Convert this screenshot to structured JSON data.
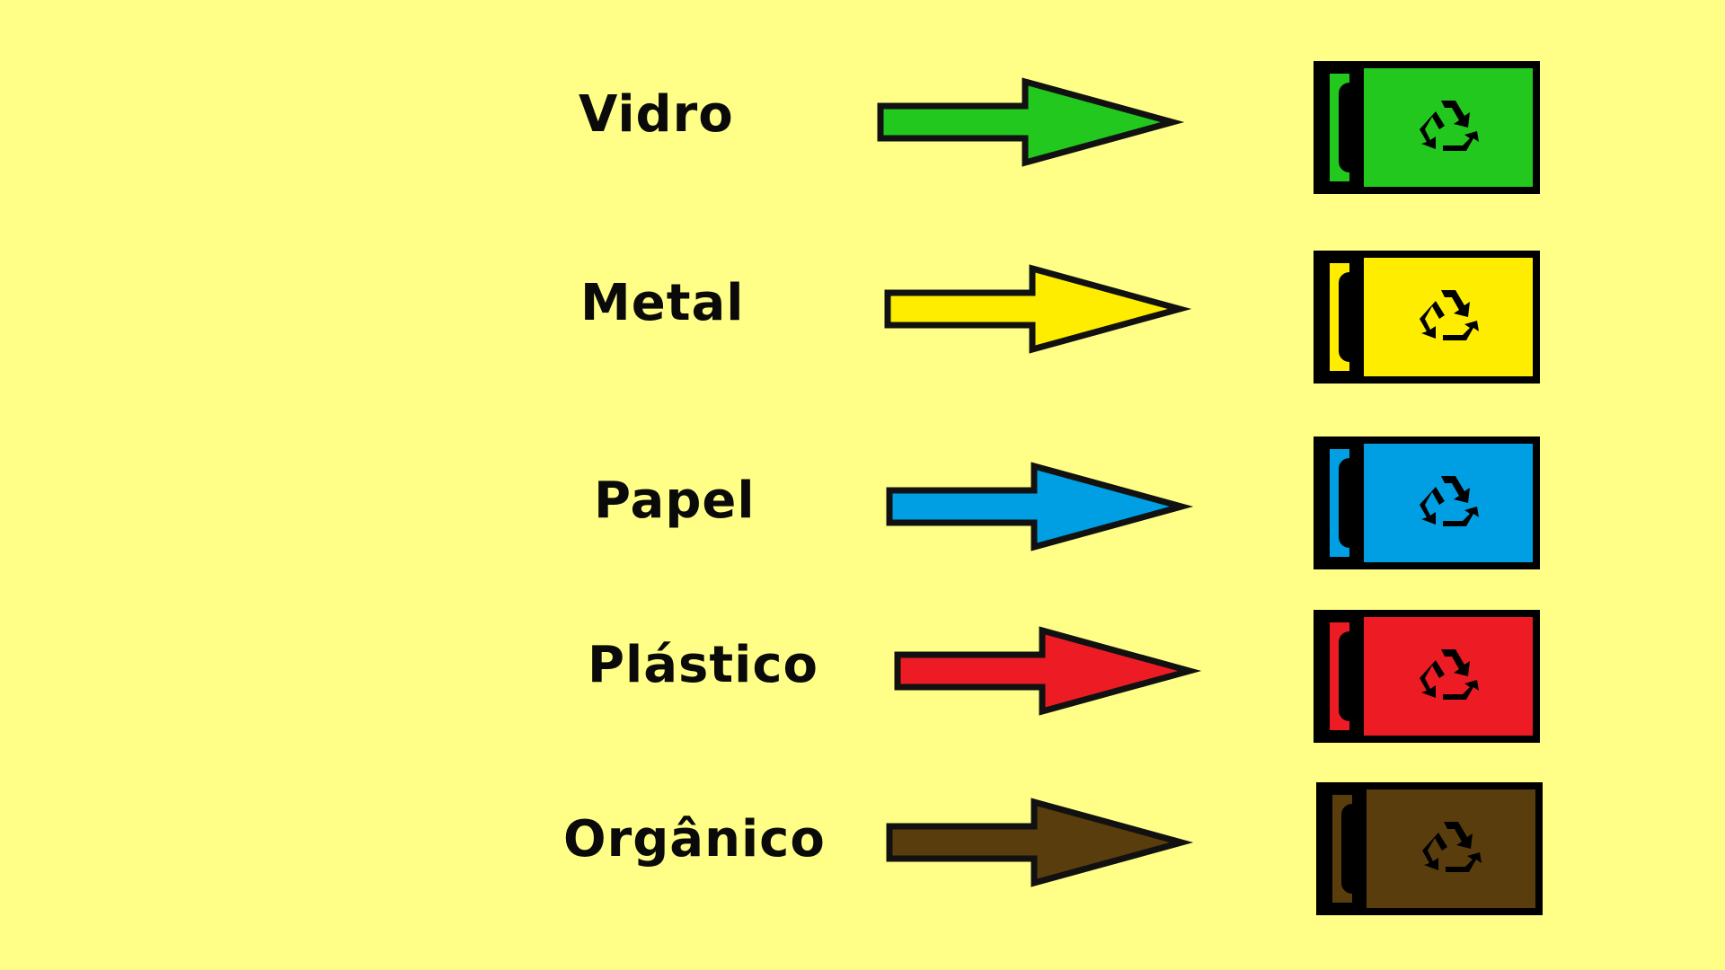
{
  "background_color": "#ffff88",
  "rows": [
    {
      "label": "Vidro",
      "color": "#22c81e",
      "icon": "recycle-icon"
    },
    {
      "label": "Metal",
      "color": "#ffed00",
      "icon": "recycle-icon"
    },
    {
      "label": "Papel",
      "color": "#009fe3",
      "icon": "recycle-icon"
    },
    {
      "label": "Plástico",
      "color": "#ed1c24",
      "icon": "recycle-icon"
    },
    {
      "label": "Orgânico",
      "color": "#5a3d0c",
      "icon": "recycle-icon"
    }
  ]
}
